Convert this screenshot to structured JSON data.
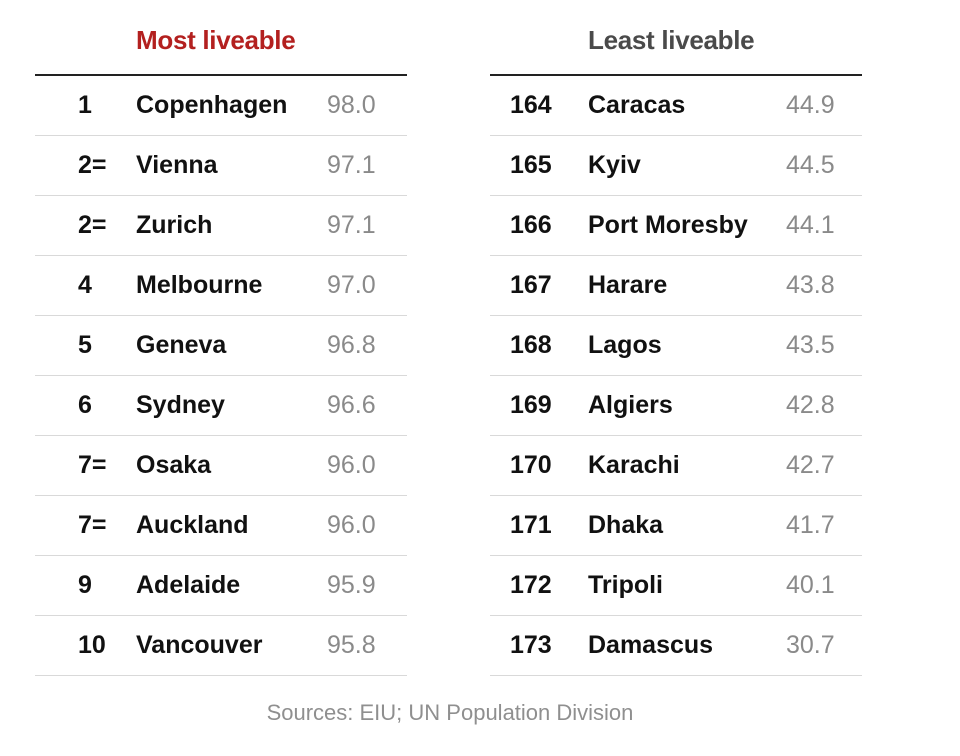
{
  "chart_data": [
    {
      "type": "table",
      "title": "Most liveable",
      "title_color": "#b3201f",
      "rows": [
        {
          "rank": "1",
          "city": "Copenhagen",
          "score": 98.0
        },
        {
          "rank": "2=",
          "city": "Vienna",
          "score": 97.1
        },
        {
          "rank": "2=",
          "city": "Zurich",
          "score": 97.1
        },
        {
          "rank": "4",
          "city": "Melbourne",
          "score": 97.0
        },
        {
          "rank": "5",
          "city": "Geneva",
          "score": 96.8
        },
        {
          "rank": "6",
          "city": "Sydney",
          "score": 96.6
        },
        {
          "rank": "7=",
          "city": "Osaka",
          "score": 96.0
        },
        {
          "rank": "7=",
          "city": "Auckland",
          "score": 96.0
        },
        {
          "rank": "9",
          "city": "Adelaide",
          "score": 95.9
        },
        {
          "rank": "10",
          "city": "Vancouver",
          "score": 95.8
        }
      ]
    },
    {
      "type": "table",
      "title": "Least liveable",
      "title_color": "#4a4a4a",
      "rows": [
        {
          "rank": "164",
          "city": "Caracas",
          "score": 44.9
        },
        {
          "rank": "165",
          "city": "Kyiv",
          "score": 44.5
        },
        {
          "rank": "166",
          "city": "Port Moresby",
          "score": 44.1
        },
        {
          "rank": "167",
          "city": "Harare",
          "score": 43.8
        },
        {
          "rank": "168",
          "city": "Lagos",
          "score": 43.5
        },
        {
          "rank": "169",
          "city": "Algiers",
          "score": 42.8
        },
        {
          "rank": "170",
          "city": "Karachi",
          "score": 42.7
        },
        {
          "rank": "171",
          "city": "Dhaka",
          "score": 41.7
        },
        {
          "rank": "172",
          "city": "Tripoli",
          "score": 40.1
        },
        {
          "rank": "173",
          "city": "Damascus",
          "score": 30.7
        }
      ]
    }
  ],
  "source": "Sources: EIU; UN Population Division"
}
